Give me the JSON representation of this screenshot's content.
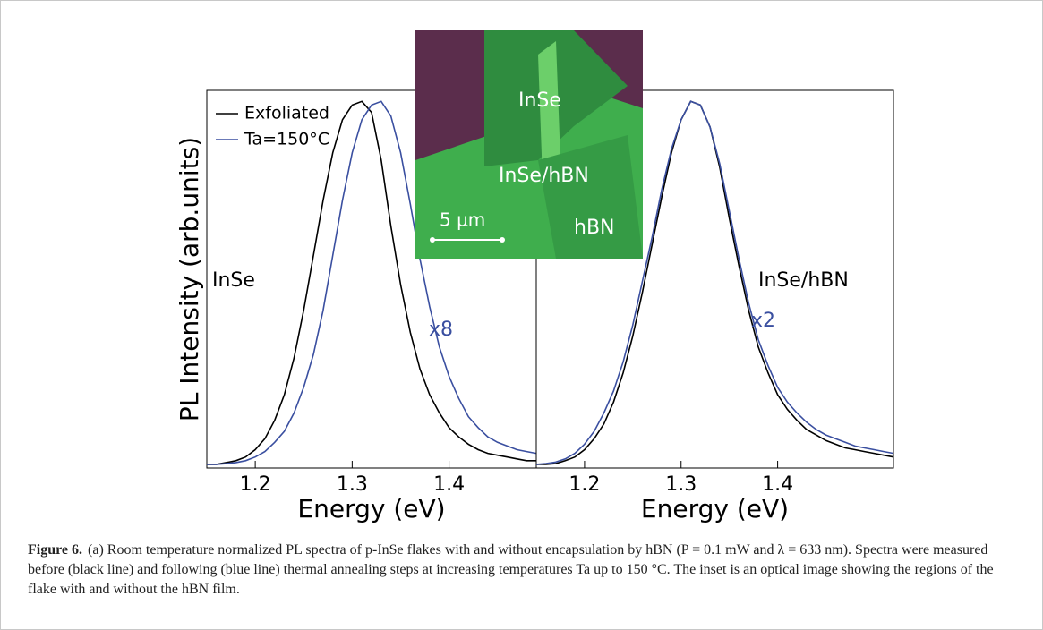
{
  "chart_data": [
    {
      "type": "line",
      "y_label": "PL Intensity (arb.units)",
      "x_label": "Energy (eV)",
      "xlim": [
        1.15,
        1.49
      ],
      "xticks": [
        1.2,
        1.3,
        1.4
      ],
      "ylim": [
        0,
        1.03
      ],
      "legend": "upper left",
      "annotations": [
        "InSe",
        "x8"
      ],
      "x": [
        1.15,
        1.16,
        1.17,
        1.18,
        1.19,
        1.2,
        1.21,
        1.22,
        1.23,
        1.24,
        1.25,
        1.26,
        1.27,
        1.28,
        1.29,
        1.3,
        1.31,
        1.32,
        1.33,
        1.34,
        1.35,
        1.36,
        1.37,
        1.38,
        1.39,
        1.4,
        1.41,
        1.42,
        1.43,
        1.44,
        1.45,
        1.46,
        1.47,
        1.48,
        1.49
      ],
      "series": [
        {
          "name": "Exfoliated",
          "color": "#000000",
          "values": [
            0.01,
            0.01,
            0.015,
            0.02,
            0.03,
            0.05,
            0.08,
            0.13,
            0.2,
            0.3,
            0.43,
            0.58,
            0.73,
            0.86,
            0.95,
            0.99,
            1.0,
            0.97,
            0.84,
            0.66,
            0.5,
            0.37,
            0.27,
            0.2,
            0.15,
            0.11,
            0.085,
            0.065,
            0.05,
            0.04,
            0.035,
            0.03,
            0.025,
            0.02,
            0.02
          ]
        },
        {
          "name": "Ta=150°C",
          "color": "#3a4fa0",
          "values": [
            0.01,
            0.01,
            0.012,
            0.015,
            0.02,
            0.03,
            0.045,
            0.07,
            0.1,
            0.15,
            0.22,
            0.31,
            0.43,
            0.58,
            0.73,
            0.86,
            0.95,
            0.99,
            1.0,
            0.96,
            0.86,
            0.72,
            0.57,
            0.44,
            0.33,
            0.25,
            0.19,
            0.14,
            0.11,
            0.085,
            0.07,
            0.06,
            0.05,
            0.045,
            0.04
          ]
        }
      ]
    },
    {
      "type": "line",
      "x_label": "Energy (eV)",
      "xlim": [
        1.15,
        1.52
      ],
      "xticks": [
        1.2,
        1.3,
        1.4
      ],
      "ylim": [
        0,
        1.03
      ],
      "annotations": [
        "InSe/hBN",
        "x2"
      ],
      "x": [
        1.15,
        1.16,
        1.17,
        1.18,
        1.19,
        1.2,
        1.21,
        1.22,
        1.23,
        1.24,
        1.25,
        1.26,
        1.27,
        1.28,
        1.29,
        1.3,
        1.31,
        1.32,
        1.33,
        1.34,
        1.35,
        1.36,
        1.37,
        1.38,
        1.39,
        1.4,
        1.41,
        1.42,
        1.43,
        1.44,
        1.45,
        1.46,
        1.47,
        1.48,
        1.49,
        1.5,
        1.51,
        1.52
      ],
      "series": [
        {
          "color": "#000000",
          "values": [
            0.01,
            0.01,
            0.012,
            0.02,
            0.03,
            0.05,
            0.08,
            0.12,
            0.18,
            0.26,
            0.36,
            0.48,
            0.61,
            0.74,
            0.86,
            0.95,
            1.0,
            0.99,
            0.93,
            0.82,
            0.68,
            0.55,
            0.43,
            0.33,
            0.26,
            0.2,
            0.16,
            0.13,
            0.105,
            0.09,
            0.075,
            0.065,
            0.055,
            0.05,
            0.045,
            0.04,
            0.035,
            0.03
          ]
        },
        {
          "color": "#3a4fa0",
          "values": [
            0.01,
            0.012,
            0.016,
            0.025,
            0.04,
            0.065,
            0.1,
            0.15,
            0.21,
            0.29,
            0.39,
            0.51,
            0.63,
            0.76,
            0.87,
            0.95,
            1.0,
            0.99,
            0.93,
            0.83,
            0.7,
            0.57,
            0.45,
            0.35,
            0.28,
            0.22,
            0.18,
            0.15,
            0.125,
            0.105,
            0.09,
            0.08,
            0.07,
            0.06,
            0.055,
            0.05,
            0.045,
            0.04
          ]
        }
      ]
    }
  ],
  "inset": {
    "labels": [
      "InSe",
      "InSe/hBN",
      "hBN"
    ],
    "scale_bar": "5 μm"
  },
  "caption": {
    "label": "Figure 6.",
    "text": "(a) Room temperature normalized PL spectra of p-InSe flakes with and without encapsulation by hBN (P = 0.1 mW and λ = 633 nm). Spectra were measured before (black line) and following (blue line) thermal annealing steps at increasing temperatures Ta up to 150 °C. The inset is an optical image showing the regions of the flake with and without the hBN film."
  }
}
